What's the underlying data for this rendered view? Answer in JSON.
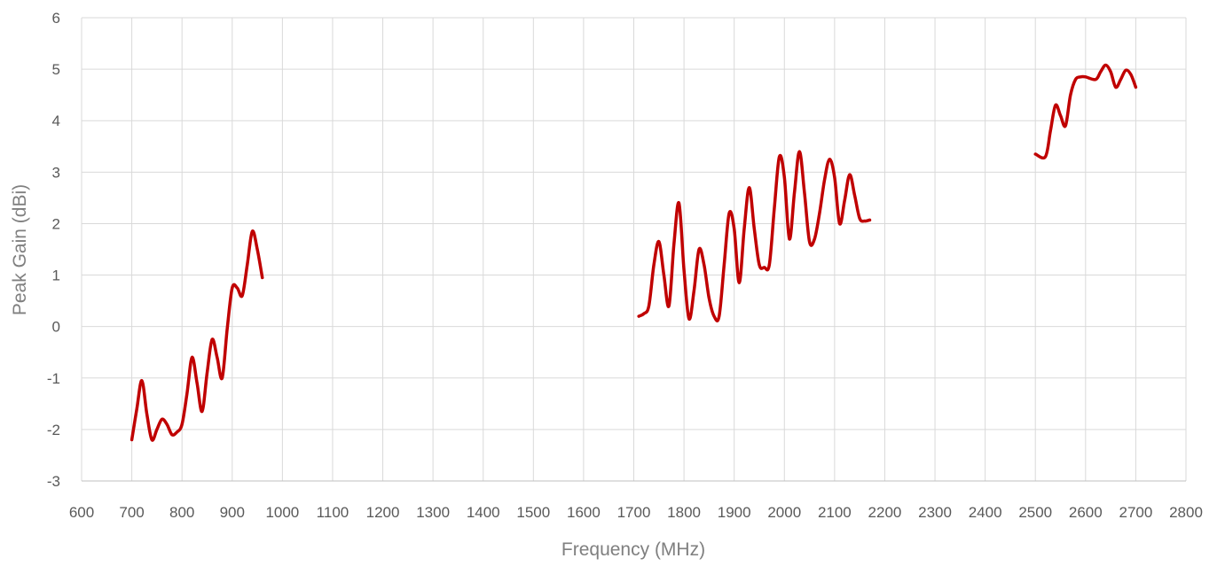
{
  "chart_data": {
    "type": "line",
    "title": "",
    "xlabel": "Frequency (MHz)",
    "ylabel": "Peak Gain (dBi)",
    "xlim": [
      600,
      2800
    ],
    "ylim": [
      -3,
      6
    ],
    "xticks": [
      600,
      700,
      800,
      900,
      1000,
      1100,
      1200,
      1300,
      1400,
      1500,
      1600,
      1700,
      1800,
      1900,
      2000,
      2100,
      2200,
      2300,
      2400,
      2500,
      2600,
      2700,
      2800
    ],
    "yticks": [
      -3,
      -2,
      -1,
      0,
      1,
      2,
      3,
      4,
      5,
      6
    ],
    "grid": true,
    "legend": "none",
    "color": "#c00000",
    "series": [
      {
        "segments": [
          [
            [
              700,
              -2.2
            ],
            [
              710,
              -1.6
            ],
            [
              720,
              -1.05
            ],
            [
              730,
              -1.7
            ],
            [
              740,
              -2.2
            ],
            [
              750,
              -2.0
            ],
            [
              760,
              -1.8
            ],
            [
              770,
              -1.9
            ],
            [
              780,
              -2.1
            ],
            [
              790,
              -2.05
            ],
            [
              800,
              -1.9
            ],
            [
              810,
              -1.3
            ],
            [
              820,
              -0.6
            ],
            [
              830,
              -1.1
            ],
            [
              840,
              -1.65
            ],
            [
              850,
              -0.9
            ],
            [
              860,
              -0.25
            ],
            [
              870,
              -0.6
            ],
            [
              880,
              -1.0
            ],
            [
              890,
              -0.05
            ],
            [
              900,
              0.75
            ],
            [
              910,
              0.75
            ],
            [
              920,
              0.6
            ],
            [
              930,
              1.2
            ],
            [
              940,
              1.85
            ],
            [
              950,
              1.5
            ],
            [
              960,
              0.95
            ]
          ],
          [
            [
              1710,
              0.2
            ],
            [
              1720,
              0.25
            ],
            [
              1730,
              0.4
            ],
            [
              1740,
              1.2
            ],
            [
              1750,
              1.65
            ],
            [
              1760,
              1.0
            ],
            [
              1770,
              0.4
            ],
            [
              1780,
              1.6
            ],
            [
              1790,
              2.4
            ],
            [
              1800,
              1.1
            ],
            [
              1810,
              0.15
            ],
            [
              1820,
              0.7
            ],
            [
              1830,
              1.5
            ],
            [
              1840,
              1.2
            ],
            [
              1850,
              0.55
            ],
            [
              1860,
              0.2
            ],
            [
              1870,
              0.2
            ],
            [
              1880,
              1.2
            ],
            [
              1890,
              2.2
            ],
            [
              1900,
              1.9
            ],
            [
              1910,
              0.85
            ],
            [
              1920,
              1.9
            ],
            [
              1930,
              2.7
            ],
            [
              1940,
              1.9
            ],
            [
              1950,
              1.2
            ],
            [
              1960,
              1.15
            ],
            [
              1970,
              1.2
            ],
            [
              1980,
              2.3
            ],
            [
              1990,
              3.3
            ],
            [
              2000,
              2.9
            ],
            [
              2010,
              1.7
            ],
            [
              2020,
              2.6
            ],
            [
              2030,
              3.4
            ],
            [
              2040,
              2.6
            ],
            [
              2050,
              1.65
            ],
            [
              2060,
              1.7
            ],
            [
              2070,
              2.2
            ],
            [
              2080,
              2.85
            ],
            [
              2090,
              3.25
            ],
            [
              2100,
              2.9
            ],
            [
              2110,
              2.0
            ],
            [
              2120,
              2.45
            ],
            [
              2130,
              2.95
            ],
            [
              2140,
              2.55
            ],
            [
              2150,
              2.1
            ],
            [
              2160,
              2.05
            ],
            [
              2170,
              2.07
            ]
          ],
          [
            [
              2500,
              3.35
            ],
            [
              2520,
              3.3
            ],
            [
              2530,
              3.8
            ],
            [
              2540,
              4.3
            ],
            [
              2550,
              4.1
            ],
            [
              2560,
              3.9
            ],
            [
              2570,
              4.5
            ],
            [
              2580,
              4.8
            ],
            [
              2590,
              4.85
            ],
            [
              2600,
              4.85
            ],
            [
              2620,
              4.8
            ],
            [
              2630,
              4.95
            ],
            [
              2640,
              5.08
            ],
            [
              2650,
              4.95
            ],
            [
              2660,
              4.65
            ],
            [
              2670,
              4.8
            ],
            [
              2680,
              4.98
            ],
            [
              2690,
              4.9
            ],
            [
              2700,
              4.65
            ]
          ]
        ]
      }
    ]
  }
}
